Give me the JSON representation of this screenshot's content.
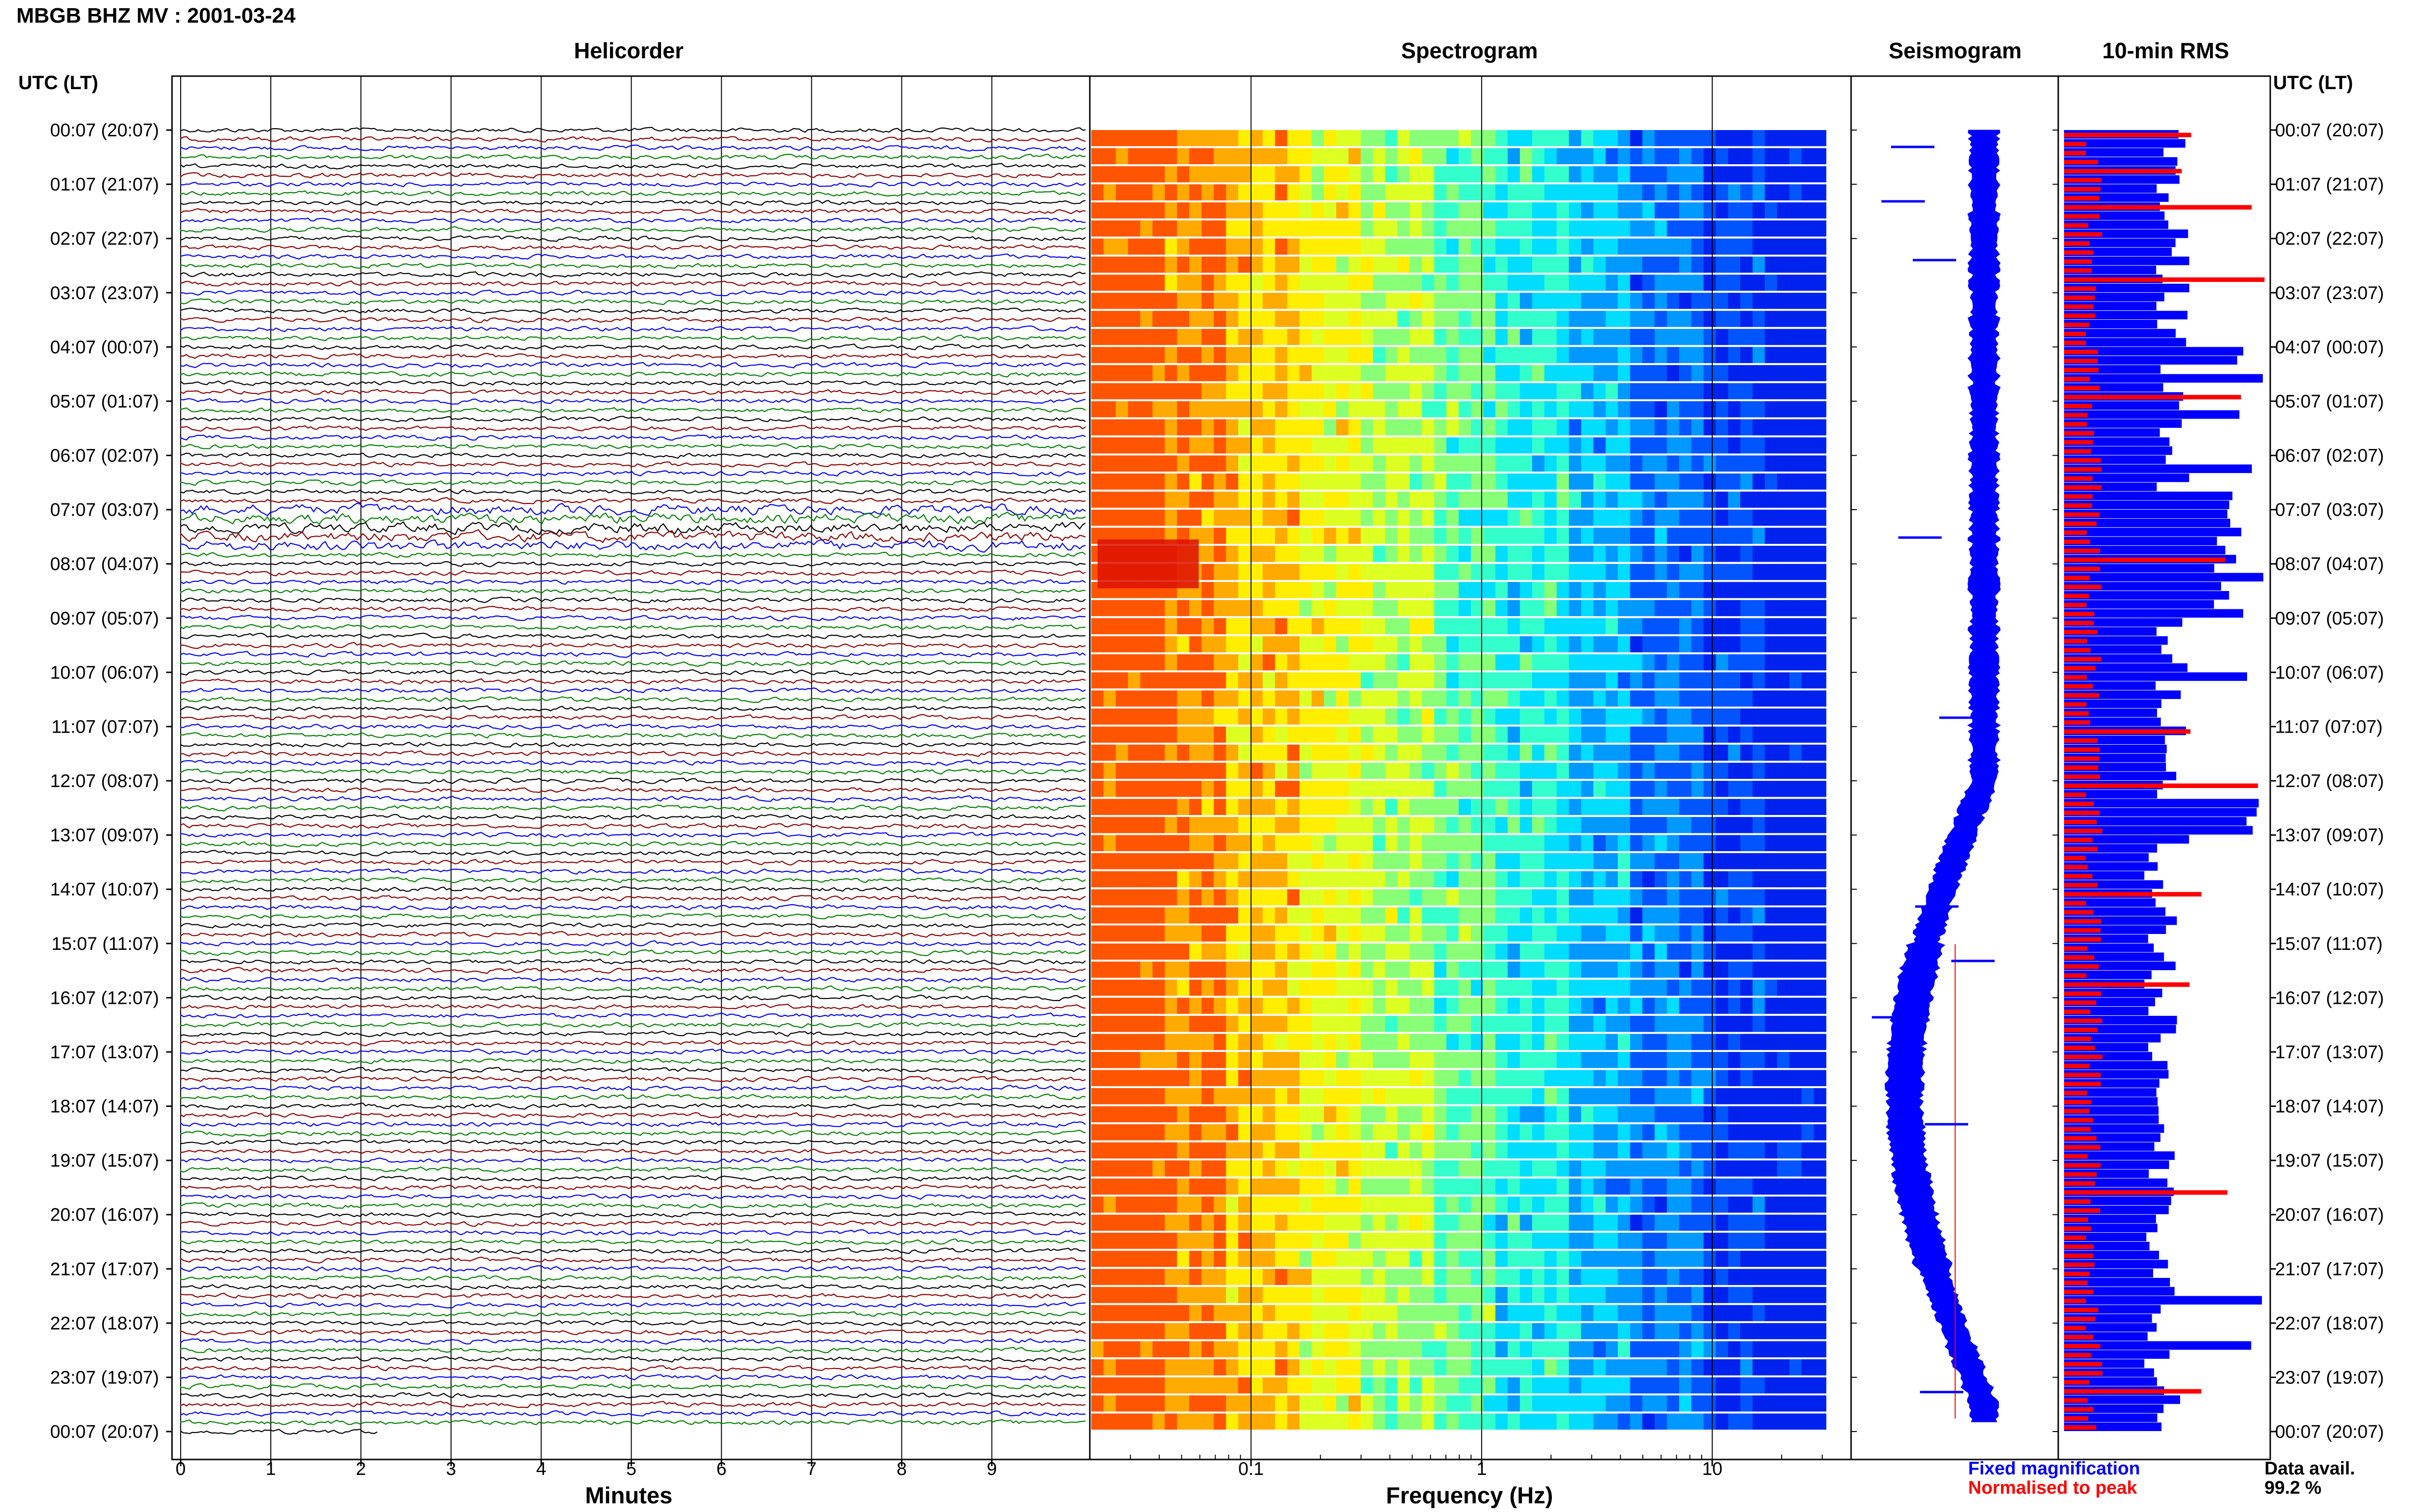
{
  "header": {
    "title": "MBGB BHZ MV : 2001-03-24"
  },
  "panels": {
    "helicorder": "Helicorder",
    "spectrogram": "Spectrogram",
    "seismogram": "Seismogram",
    "rms": "10-min RMS"
  },
  "axes": {
    "utc_label_left": "UTC (LT)",
    "utc_label_right": "UTC (LT)",
    "minutes_label": "Minutes",
    "frequency_label": "Frequency (Hz)"
  },
  "footer": {
    "fixed_magnification": "Fixed magnification",
    "normalised_to_peak": "Normalised to peak",
    "data_avail_label": "Data avail.",
    "data_avail_value": "99.2 %"
  },
  "colors": {
    "blue": "#0000ff",
    "red": "#ff0000",
    "green": "#008000",
    "darkred": "#8b0000",
    "black": "#000000"
  },
  "chart_data": [
    {
      "type": "line",
      "panel": "Helicorder",
      "x_ticks": [
        "0",
        "1",
        "2",
        "3",
        "4",
        "5",
        "6",
        "7",
        "8",
        "9"
      ],
      "xlabel": "Minutes",
      "y_ticks": [
        "00:07 (20:07)",
        "01:07 (21:07)",
        "02:07 (22:07)",
        "03:07 (23:07)",
        "04:07 (00:07)",
        "05:07 (01:07)",
        "06:07 (02:07)",
        "07:07 (03:07)",
        "08:07 (04:07)",
        "09:07 (05:07)",
        "10:07 (06:07)",
        "11:07 (07:07)",
        "12:07 (08:07)",
        "13:07 (09:07)",
        "14:07 (10:07)",
        "15:07 (11:07)",
        "16:07 (12:07)",
        "17:07 (13:07)",
        "18:07 (14:07)",
        "19:07 (15:07)",
        "20:07 (16:07)",
        "21:07 (17:07)",
        "22:07 (18:07)",
        "23:07 (19:07)",
        "00:07 (20:07)"
      ],
      "trace_colors": [
        "black",
        "darkred",
        "blue",
        "green"
      ],
      "traces_per_hour": 6
    },
    {
      "type": "heatmap",
      "panel": "Spectrogram",
      "x_scale": "log",
      "x_ticks": [
        "0.1",
        "1",
        "10"
      ],
      "xlabel": "Frequency (Hz)",
      "xlim": [
        0.02,
        40
      ],
      "colormap": "jet"
    },
    {
      "type": "line",
      "panel": "Seismogram",
      "series": [
        {
          "name": "Fixed magnification",
          "color": "blue"
        },
        {
          "name": "Normalised to peak",
          "color": "red"
        }
      ]
    },
    {
      "type": "bar",
      "panel": "10-min RMS",
      "series": [
        {
          "name": "Fixed magnification",
          "color": "blue"
        },
        {
          "name": "Normalised to peak",
          "color": "red"
        }
      ],
      "data_available_percent": 99.2
    }
  ]
}
